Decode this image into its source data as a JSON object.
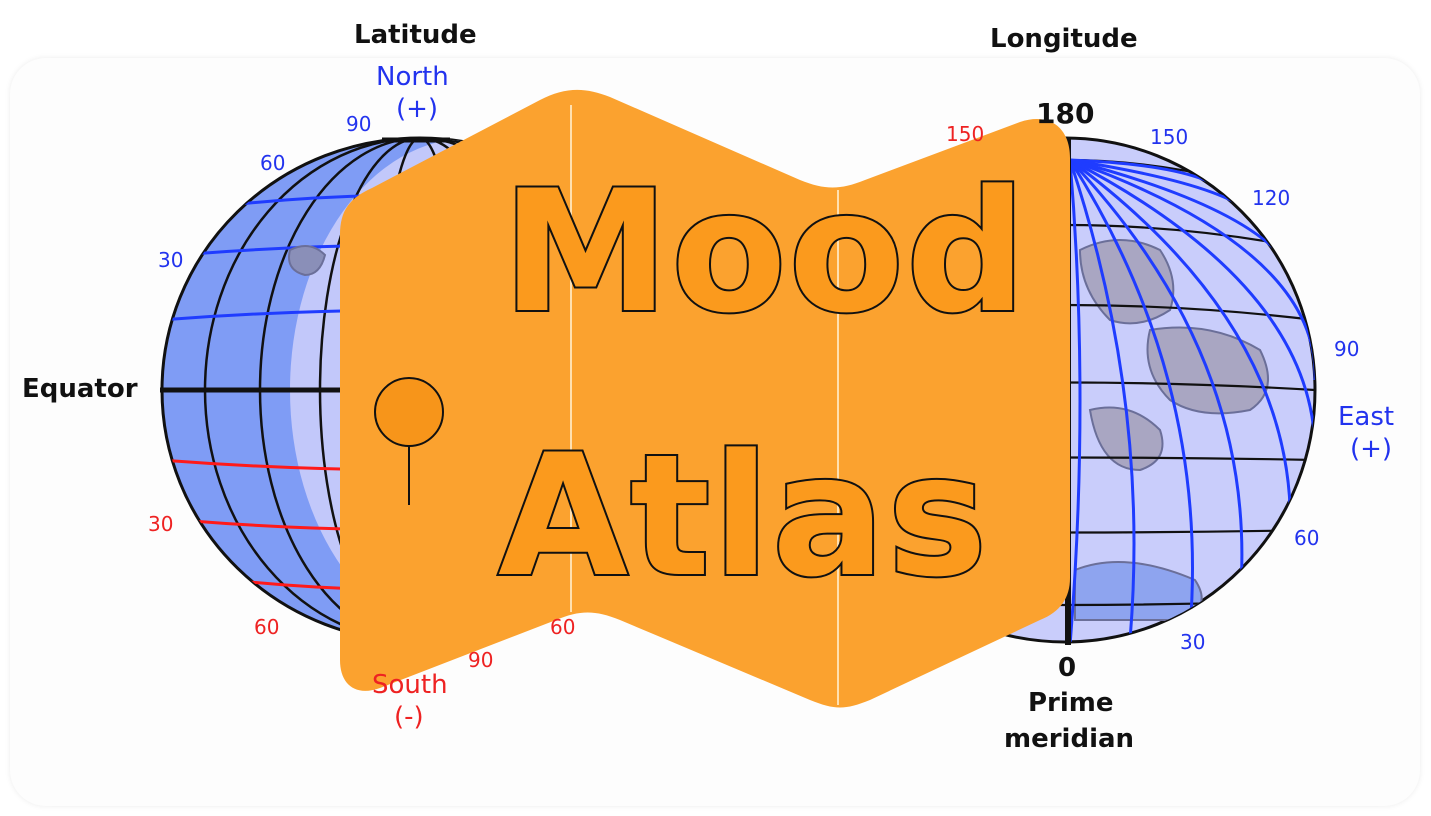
{
  "latitude_diagram": {
    "title": "Latitude",
    "north_label": "North",
    "north_sign": "(+)",
    "south_label": "South",
    "south_sign": "(-)",
    "equator_label": "Equator",
    "north_ticks": [
      "90",
      "60",
      "30"
    ],
    "south_ticks": [
      "30",
      "60",
      "90"
    ],
    "line_color_north": "#1f3cff",
    "line_color_south": "#ff1a1a",
    "globe_fill": "#7f9cf5"
  },
  "longitude_diagram": {
    "title": "Longitude",
    "top_value": "180",
    "bottom_value": "0",
    "prime_meridian_label": "Prime",
    "prime_meridian_label2": "meridian",
    "east_label": "East",
    "east_sign": "(+)",
    "east_ticks": [
      "150",
      "120",
      "90",
      "60",
      "30"
    ],
    "west_tick_partial": "150",
    "globe_fill": "#c9cdfb"
  },
  "logo": {
    "line1": "Mood",
    "line2": "Atlas",
    "color": "#fba22f",
    "outline": "#111111",
    "pin_color": "#f7951a"
  }
}
